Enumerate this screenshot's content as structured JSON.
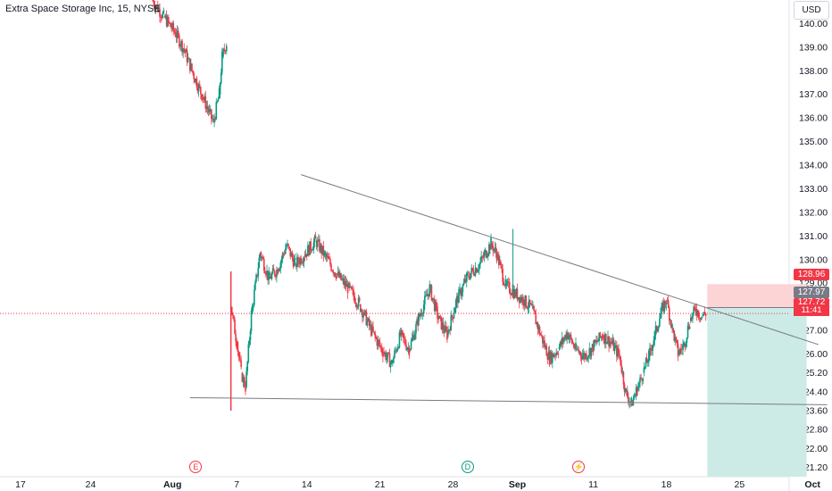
{
  "header": {
    "title": "Extra Space Storage Inc, 15, NYSE",
    "currency": "USD"
  },
  "price_labels": {
    "stop_loss": "128.96",
    "entry": "127.97",
    "current": "127.72",
    "countdown": "11:41"
  },
  "events": [
    {
      "label": "E",
      "x": 6.7,
      "name": "earnings",
      "color": "#f23645"
    },
    {
      "label": "D",
      "x": 16.0,
      "name": "dividend",
      "color": "#089981"
    },
    {
      "label": "⚡",
      "x": 19.8,
      "name": "news",
      "color": "#f23645"
    }
  ],
  "colors": {
    "up": "#089981",
    "down": "#f23645",
    "trendline": "#787b86",
    "stop_zone": "#fcd4d6",
    "target_zone": "#cdebe6"
  },
  "chart_data": {
    "type": "candlestick",
    "title": "Extra Space Storage Inc, 15, NYSE",
    "xlabel": "",
    "ylabel": "",
    "x_unit": "days from July 16",
    "xlim": [
      0,
      27
    ],
    "ylim": [
      120.8,
      141.0
    ],
    "y_ticks": [
      "121.20",
      "122.00",
      "122.80",
      "123.60",
      "124.40",
      "125.20",
      "126.00",
      "127.00",
      "128.00",
      "129.00",
      "130.00",
      "131.00",
      "132.00",
      "133.00",
      "134.00",
      "135.00",
      "136.00",
      "137.00",
      "138.00",
      "139.00",
      "140.00"
    ],
    "x_ticks": [
      {
        "label": "17",
        "x": 0.7
      },
      {
        "label": "24",
        "x": 3.1
      },
      {
        "label": "Aug",
        "x": 5.9
      },
      {
        "label": "7",
        "x": 8.1
      },
      {
        "label": "14",
        "x": 10.5
      },
      {
        "label": "21",
        "x": 13.0
      },
      {
        "label": "28",
        "x": 15.5
      },
      {
        "label": "Sep",
        "x": 17.7
      },
      {
        "label": "11",
        "x": 20.3
      },
      {
        "label": "18",
        "x": 22.8
      },
      {
        "label": "25",
        "x": 25.3
      },
      {
        "label": "Oct",
        "x": 27.8
      }
    ],
    "price_path": [
      [
        5.2,
        141.0
      ],
      [
        5.6,
        140.3
      ],
      [
        6.0,
        139.6
      ],
      [
        6.3,
        138.9
      ],
      [
        6.6,
        137.9
      ],
      [
        6.9,
        137.0
      ],
      [
        7.1,
        136.4
      ],
      [
        7.3,
        135.8
      ],
      [
        7.5,
        137.0
      ],
      [
        7.6,
        138.6
      ],
      [
        7.75,
        139.2
      ],
      [
        7.9,
        128.0
      ],
      [
        8.1,
        126.5
      ],
      [
        8.25,
        125.2
      ],
      [
        8.4,
        124.6
      ],
      [
        8.6,
        127.7
      ],
      [
        8.9,
        130.3
      ],
      [
        9.2,
        129.2
      ],
      [
        9.5,
        129.6
      ],
      [
        9.8,
        130.6
      ],
      [
        10.1,
        129.8
      ],
      [
        10.4,
        130.2
      ],
      [
        10.8,
        130.8
      ],
      [
        11.1,
        130.2
      ],
      [
        11.5,
        129.4
      ],
      [
        11.9,
        128.8
      ],
      [
        12.3,
        128.1
      ],
      [
        12.7,
        127.0
      ],
      [
        13.1,
        126.1
      ],
      [
        13.4,
        125.6
      ],
      [
        13.7,
        126.8
      ],
      [
        14.0,
        126.2
      ],
      [
        14.3,
        127.4
      ],
      [
        14.7,
        128.8
      ],
      [
        15.0,
        127.5
      ],
      [
        15.3,
        126.8
      ],
      [
        15.6,
        128.2
      ],
      [
        16.0,
        129.3
      ],
      [
        16.4,
        129.8
      ],
      [
        16.8,
        130.7
      ],
      [
        17.0,
        130.2
      ],
      [
        17.3,
        128.9
      ],
      [
        17.6,
        128.6
      ],
      [
        17.9,
        128.3
      ],
      [
        18.2,
        127.9
      ],
      [
        18.5,
        126.8
      ],
      [
        18.8,
        125.8
      ],
      [
        19.1,
        126.2
      ],
      [
        19.4,
        126.9
      ],
      [
        19.7,
        126.2
      ],
      [
        20.0,
        125.9
      ],
      [
        20.3,
        126.3
      ],
      [
        20.6,
        126.8
      ],
      [
        20.9,
        126.5
      ],
      [
        21.2,
        125.9
      ],
      [
        21.4,
        124.4
      ],
      [
        21.6,
        123.9
      ],
      [
        21.8,
        124.5
      ],
      [
        22.0,
        125.2
      ],
      [
        22.2,
        125.9
      ],
      [
        22.4,
        126.8
      ],
      [
        22.6,
        127.7
      ],
      [
        22.8,
        128.3
      ],
      [
        23.0,
        127.1
      ],
      [
        23.2,
        126.0
      ],
      [
        23.4,
        126.4
      ],
      [
        23.6,
        127.4
      ],
      [
        23.8,
        127.9
      ],
      [
        24.0,
        127.6
      ],
      [
        24.15,
        127.72
      ]
    ],
    "annotations": [
      {
        "type": "trendline",
        "name": "descending-resistance",
        "from": [
          10.3,
          133.6
        ],
        "to": [
          28.0,
          126.4
        ]
      },
      {
        "type": "trendline",
        "name": "support",
        "from": [
          6.5,
          124.15
        ],
        "to": [
          28.3,
          123.85
        ]
      },
      {
        "type": "short-position",
        "entry": 127.97,
        "stop": 128.96,
        "target": 120.8,
        "x_from": 24.2,
        "x_to": 27.6
      },
      {
        "type": "price-line",
        "name": "current-price",
        "value": 127.72
      },
      {
        "type": "candle-spike",
        "x": 7.9,
        "high": 129.5,
        "low": 123.6
      }
    ]
  }
}
